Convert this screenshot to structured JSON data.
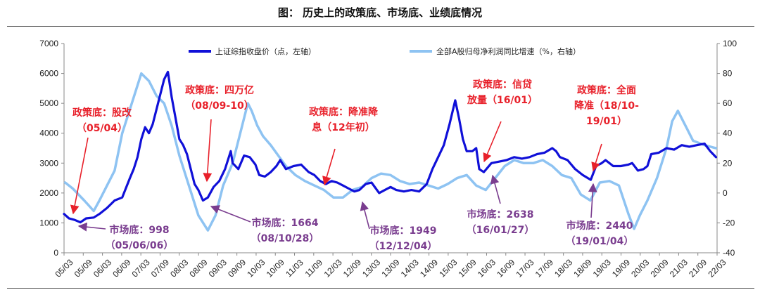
{
  "title": "图： 历史上的政策底、市场底、业绩底情况",
  "chart_data": {
    "type": "line",
    "x_ticks": [
      "05/03",
      "05/09",
      "06/03",
      "06/09",
      "07/03",
      "07/09",
      "08/03",
      "08/09",
      "09/03",
      "09/09",
      "10/03",
      "10/09",
      "11/03",
      "11/09",
      "12/03",
      "12/09",
      "13/03",
      "13/09",
      "14/03",
      "14/09",
      "15/03",
      "15/09",
      "16/03",
      "16/09",
      "17/03",
      "17/09",
      "18/03",
      "18/09",
      "19/03",
      "19/09",
      "20/03",
      "20/09",
      "21/03",
      "21/09",
      "22/03"
    ],
    "left_axis": {
      "min": 0,
      "max": 7000,
      "ticks": [
        "0",
        "1000",
        "2000",
        "3000",
        "4000",
        "5000",
        "6000",
        "7000"
      ]
    },
    "right_axis": {
      "min": -40,
      "max": 100,
      "ticks": [
        "-40",
        "-20",
        "0",
        "20",
        "40",
        "60",
        "80",
        "100"
      ]
    },
    "series": [
      {
        "name": "上证综指收盘价（点，左轴）",
        "axis": "left",
        "color": "#1010d8",
        "x": [
          2005.17,
          2005.3,
          2005.45,
          2005.6,
          2005.75,
          2005.95,
          2006.1,
          2006.3,
          2006.5,
          2006.7,
          2006.9,
          2007.0,
          2007.1,
          2007.2,
          2007.3,
          2007.4,
          2007.5,
          2007.6,
          2007.7,
          2007.8,
          2007.9,
          2008.0,
          2008.1,
          2008.2,
          2008.3,
          2008.4,
          2008.5,
          2008.6,
          2008.7,
          2008.82,
          2008.95,
          2009.1,
          2009.25,
          2009.4,
          2009.55,
          2009.6,
          2009.75,
          2009.9,
          2010.05,
          2010.2,
          2010.3,
          2010.45,
          2010.6,
          2010.75,
          2010.85,
          2011.0,
          2011.2,
          2011.4,
          2011.6,
          2011.75,
          2011.9,
          2012.05,
          2012.2,
          2012.35,
          2012.5,
          2012.65,
          2012.8,
          2012.93,
          2013.1,
          2013.25,
          2013.45,
          2013.6,
          2013.75,
          2013.9,
          2014.1,
          2014.3,
          2014.5,
          2014.7,
          2014.85,
          2015.0,
          2015.15,
          2015.3,
          2015.45,
          2015.55,
          2015.65,
          2015.75,
          2015.9,
          2016.0,
          2016.08,
          2016.2,
          2016.4,
          2016.6,
          2016.8,
          2017.0,
          2017.2,
          2017.4,
          2017.6,
          2017.8,
          2018.0,
          2018.1,
          2018.2,
          2018.4,
          2018.6,
          2018.8,
          2019.01,
          2019.15,
          2019.3,
          2019.4,
          2019.6,
          2019.8,
          2020.0,
          2020.1,
          2020.25,
          2020.4,
          2020.5,
          2020.6,
          2020.8,
          2021.0,
          2021.2,
          2021.4,
          2021.6,
          2021.8,
          2022.0,
          2022.15,
          2022.3
        ],
        "y": [
          1300,
          1150,
          1100,
          1020,
          1150,
          1180,
          1300,
          1500,
          1750,
          1850,
          2500,
          2800,
          3200,
          3800,
          4200,
          4000,
          4300,
          4800,
          5300,
          5800,
          6050,
          5200,
          4500,
          3800,
          3600,
          3300,
          2800,
          2300,
          2100,
          1750,
          1850,
          2200,
          2400,
          2800,
          3400,
          3000,
          2800,
          3250,
          3200,
          2950,
          2600,
          2550,
          2700,
          2900,
          3100,
          2800,
          2900,
          2950,
          2700,
          2600,
          2400,
          2300,
          2400,
          2350,
          2250,
          2150,
          2050,
          2100,
          2300,
          2350,
          2000,
          2100,
          2200,
          2100,
          2050,
          2100,
          2050,
          2300,
          2800,
          3200,
          3600,
          4300,
          5100,
          4500,
          3800,
          3400,
          3400,
          3500,
          2800,
          2700,
          3000,
          3050,
          3100,
          3200,
          3150,
          3200,
          3300,
          3350,
          3500,
          3400,
          3200,
          3100,
          2800,
          2600,
          2440,
          2900,
          3000,
          3100,
          2900,
          2900,
          2950,
          3000,
          2750,
          2800,
          2900,
          3300,
          3350,
          3500,
          3450,
          3600,
          3550,
          3600,
          3650,
          3400,
          3200
        ]
      },
      {
        "name": "全部A股归母净利润同比增速（%，右轴）",
        "axis": "right",
        "color": "#8ec3f2",
        "x": [
          2005.2,
          2005.4,
          2005.7,
          2005.95,
          2006.1,
          2006.3,
          2006.5,
          2006.7,
          2006.95,
          2007.2,
          2007.4,
          2007.6,
          2007.8,
          2008.0,
          2008.2,
          2008.45,
          2008.7,
          2008.95,
          2009.15,
          2009.35,
          2009.6,
          2009.85,
          2010.0,
          2010.1,
          2010.25,
          2010.4,
          2010.6,
          2010.8,
          2011.0,
          2011.25,
          2011.5,
          2011.75,
          2012.0,
          2012.25,
          2012.5,
          2012.75,
          2013.0,
          2013.25,
          2013.5,
          2013.75,
          2014.0,
          2014.25,
          2014.5,
          2014.75,
          2015.0,
          2015.25,
          2015.5,
          2015.75,
          2016.0,
          2016.25,
          2016.5,
          2016.75,
          2017.0,
          2017.25,
          2017.5,
          2017.75,
          2018.0,
          2018.25,
          2018.5,
          2018.75,
          2019.0,
          2019.25,
          2019.5,
          2019.75,
          2020.0,
          2020.15,
          2020.3,
          2020.5,
          2020.75,
          2021.0,
          2021.15,
          2021.3,
          2021.5,
          2021.7,
          2022.0,
          2022.3
        ],
        "y": [
          7,
          3,
          -5,
          -12,
          -5,
          5,
          15,
          40,
          60,
          80,
          75,
          65,
          60,
          45,
          25,
          5,
          -15,
          -25,
          -15,
          5,
          20,
          45,
          60,
          55,
          45,
          38,
          32,
          25,
          18,
          12,
          8,
          5,
          2,
          -3,
          -3,
          2,
          4,
          10,
          13,
          12,
          8,
          6,
          7,
          5,
          3,
          6,
          10,
          12,
          5,
          2,
          10,
          18,
          22,
          20,
          20,
          22,
          18,
          12,
          10,
          -1,
          -5,
          7,
          8,
          5,
          -14,
          -24,
          -15,
          -5,
          10,
          30,
          48,
          55,
          45,
          35,
          32,
          30
        ]
      }
    ],
    "annotations_policy": [
      {
        "lines": [
          "政策底：股改",
          "（05/04）"
        ]
      },
      {
        "lines": [
          "政策底：四万亿",
          "（08/09-10）"
        ]
      },
      {
        "lines": [
          "政策底：降准降",
          "息（12年初）"
        ]
      },
      {
        "lines": [
          "政策底：信贷",
          "放量（16/01）"
        ]
      },
      {
        "lines": [
          "政策底：全面",
          "降准（18/10-",
          "19/01）"
        ]
      }
    ],
    "annotations_market": [
      {
        "lines": [
          "市场底：998",
          "（05/06/06）"
        ]
      },
      {
        "lines": [
          "市场底：1664",
          "（08/10/28）"
        ]
      },
      {
        "lines": [
          "市场底：1949",
          "（12/12/04）"
        ]
      },
      {
        "lines": [
          "市场底：2638",
          "（16/01/27）"
        ]
      },
      {
        "lines": [
          "市场底：2440",
          "（19/01/04）"
        ]
      }
    ]
  }
}
